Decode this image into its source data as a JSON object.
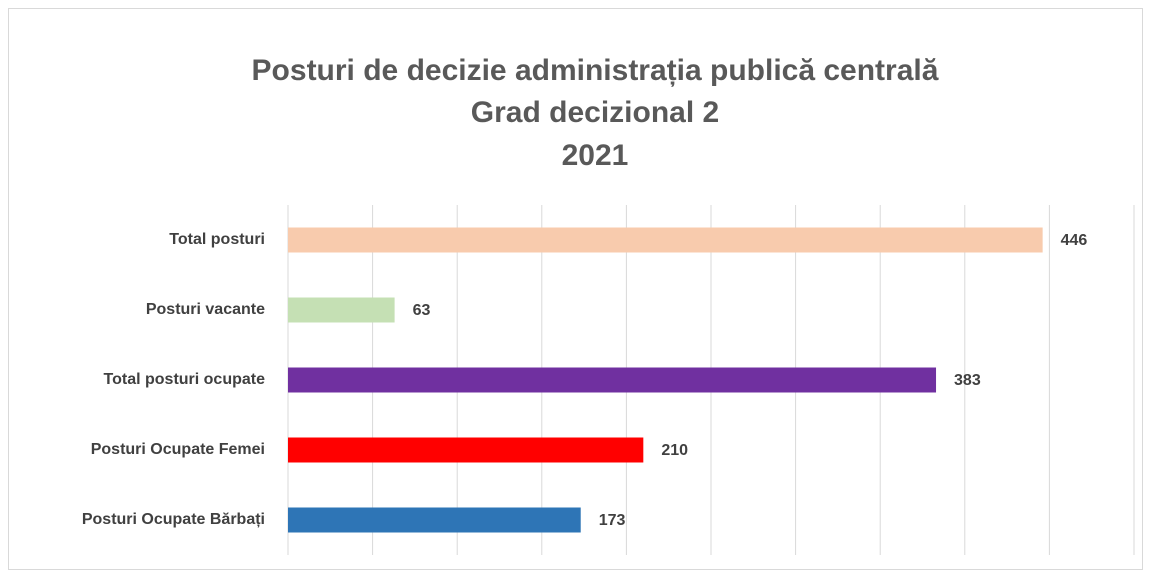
{
  "chart_data": {
    "type": "hbar",
    "title": [
      "Posturi de decizie administrația publică centrală",
      "Grad decizional 2",
      "2021"
    ],
    "categories": [
      "Total posturi",
      "Posturi vacante",
      "Total posturi ocupate",
      "Posturi Ocupate Femei",
      "Posturi Ocupate Bărbați"
    ],
    "values": [
      446,
      63,
      383,
      210,
      173
    ],
    "colors": [
      "#f8cbad",
      "#c5e0b4",
      "#7030a0",
      "#ff0000",
      "#2e75b6"
    ],
    "xlim": [
      0,
      500
    ],
    "xticks": [
      0,
      50,
      100,
      150,
      200,
      250,
      300,
      350,
      400,
      450,
      500
    ],
    "grid": true
  }
}
